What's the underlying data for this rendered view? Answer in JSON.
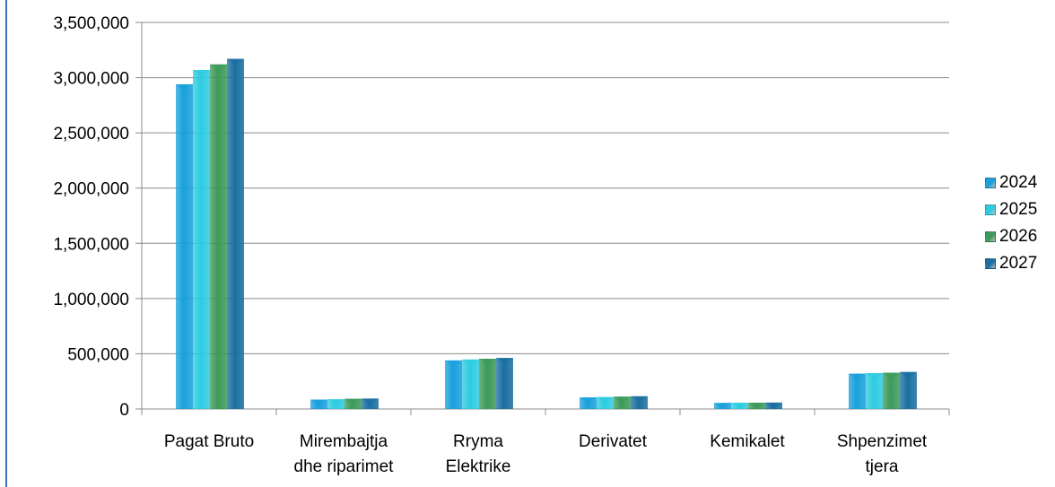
{
  "chart_data": {
    "type": "bar",
    "categories": [
      [
        "Pagat Bruto"
      ],
      [
        "Mirembajtja",
        "dhe riparimet"
      ],
      [
        "Rryma",
        "Elektrike"
      ],
      [
        "Derivatet"
      ],
      [
        "Kemikalet"
      ],
      [
        "Shpenzimet",
        "tjera"
      ]
    ],
    "series": [
      {
        "name": "2024",
        "color": "#1aa0dc",
        "values": [
          2940000,
          85000,
          440000,
          105000,
          55000,
          320000
        ]
      },
      {
        "name": "2025",
        "color": "#2dcce0",
        "values": [
          3070000,
          88000,
          448000,
          108000,
          56000,
          325000
        ]
      },
      {
        "name": "2026",
        "color": "#3c9a5a",
        "values": [
          3120000,
          92000,
          455000,
          112000,
          57000,
          328000
        ]
      },
      {
        "name": "2027",
        "color": "#1a6fa0",
        "values": [
          3170000,
          94000,
          462000,
          115000,
          58000,
          335000
        ]
      }
    ],
    "ylim": [
      0,
      3500000
    ],
    "yticks": [
      "0",
      "500,000",
      "1,000,000",
      "1,500,000",
      "2,000,000",
      "2,500,000",
      "3,000,000",
      "3,500,000"
    ],
    "grid": true,
    "legend_position": "right"
  }
}
